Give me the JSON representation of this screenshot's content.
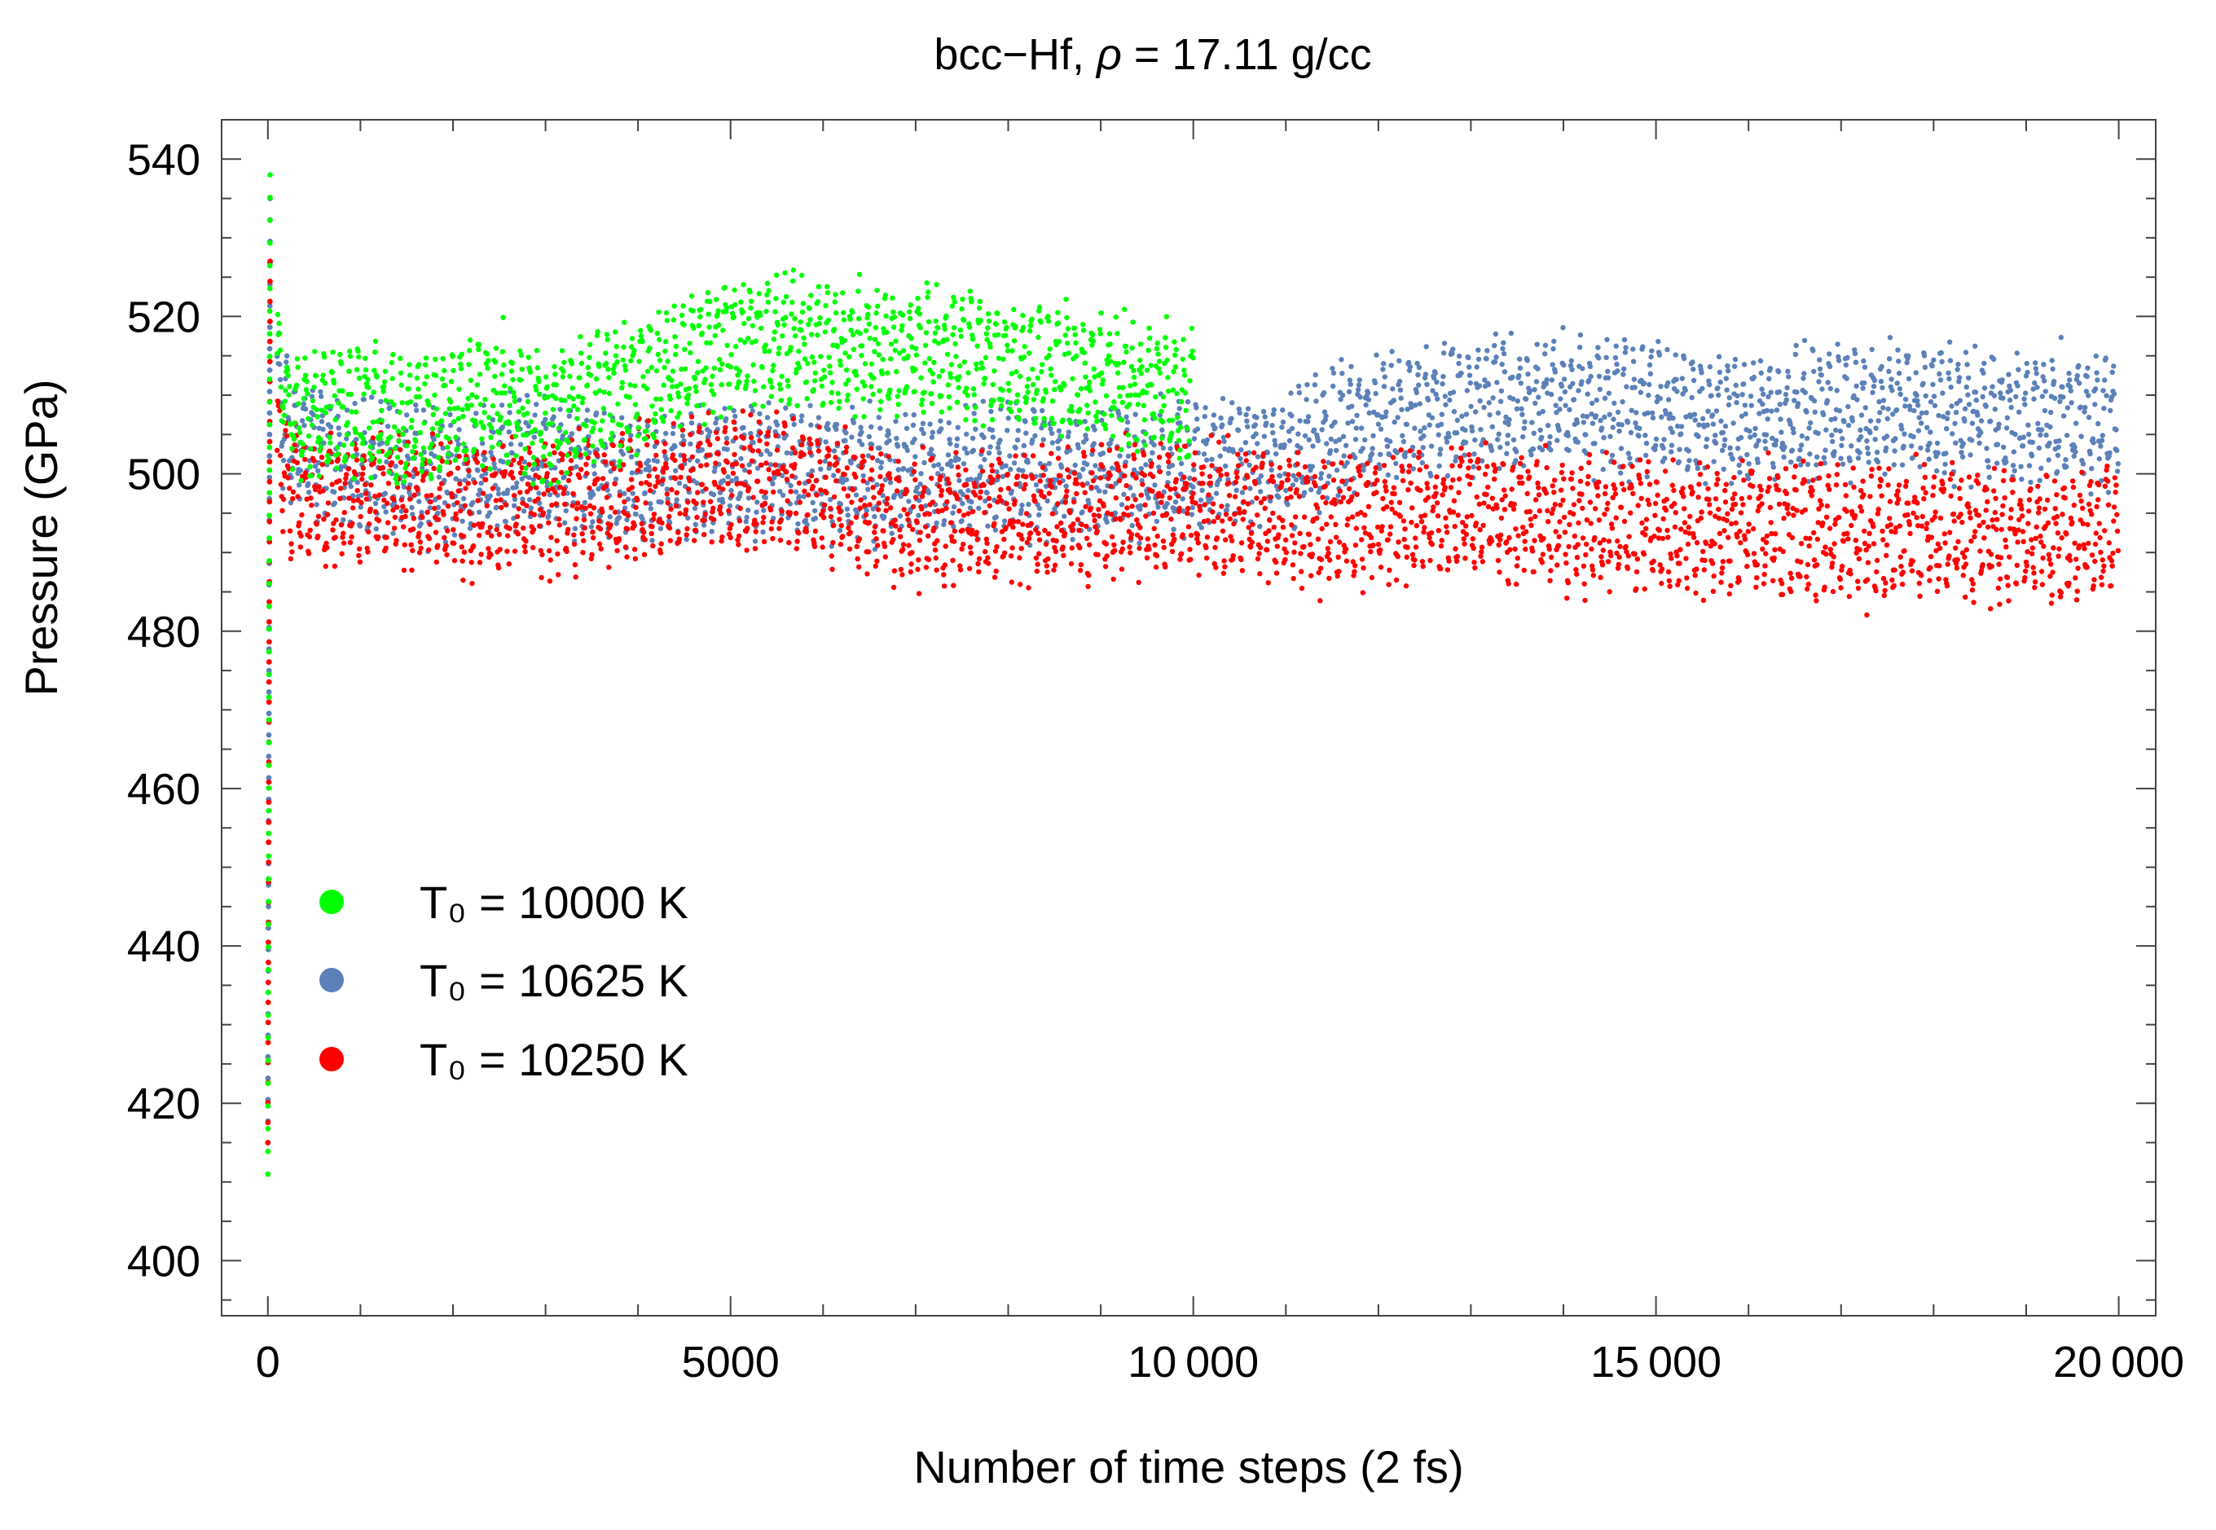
{
  "chart_data": {
    "type": "scatter",
    "title_prefix": "bcc−Hf, ",
    "title_symbol": "ρ",
    "title_suffix": " = 17.11 g/cc",
    "xlabel": "Number of time steps (2 fs)",
    "ylabel": "Pressure (GPa)",
    "xlim": [
      -500,
      20400
    ],
    "ylim": [
      393,
      545
    ],
    "x_ticks": [
      0,
      5000,
      10000,
      15000,
      20000
    ],
    "x_tick_labels": [
      "0",
      "5000",
      "10 000",
      "15 000",
      "20 000"
    ],
    "y_ticks": [
      400,
      420,
      440,
      460,
      480,
      500,
      520,
      540
    ],
    "y_tick_labels": [
      "400",
      "420",
      "440",
      "460",
      "480",
      "500",
      "520",
      "540"
    ],
    "legend_position": "lower-left",
    "series": [
      {
        "name": "T₀ = 10000 K",
        "color": "#00ff00",
        "x": [
          0,
          100,
          500,
          1000,
          1500,
          2000,
          2500,
          3000,
          3500,
          4000,
          4500,
          5000,
          5500,
          6000,
          6500,
          7000,
          7500,
          8000,
          8500,
          9000,
          9500,
          10000
        ],
        "y": [
          411,
          508,
          507,
          508,
          506,
          508,
          510,
          507,
          510,
          511,
          514,
          517,
          517,
          516,
          516,
          515,
          516,
          514,
          513,
          512,
          511,
          510
        ]
      },
      {
        "name": "T₀ = 10625 K",
        "color": "#5c81b9",
        "x": [
          0,
          100,
          1000,
          2000,
          3000,
          4000,
          5000,
          6000,
          7000,
          8000,
          9000,
          10000,
          11000,
          12000,
          13000,
          14000,
          15000,
          16000,
          17000,
          18000,
          19000,
          20000
        ],
        "y": [
          415,
          505,
          501,
          500,
          501,
          499,
          501,
          500,
          500,
          501,
          500,
          501,
          502,
          507,
          509,
          509,
          508,
          507,
          508,
          508,
          507,
          507
        ]
      },
      {
        "name": "T₀ = 10250 K",
        "color": "#ff0000",
        "x": [
          0,
          100,
          1000,
          2000,
          3000,
          4000,
          5000,
          6000,
          7000,
          8000,
          9000,
          10000,
          11000,
          12000,
          13000,
          14000,
          15000,
          16000,
          17000,
          18000,
          19000,
          20000
        ],
        "y": [
          415,
          497,
          497,
          496,
          496,
          497,
          499,
          498,
          494,
          495,
          495,
          496,
          494,
          494,
          495,
          494,
          493,
          493,
          492,
          493,
          492,
          492
        ]
      }
    ]
  }
}
